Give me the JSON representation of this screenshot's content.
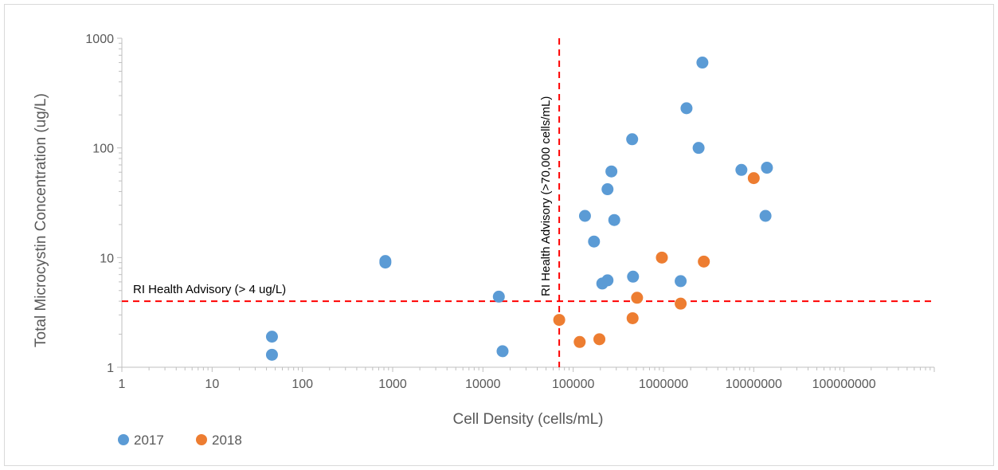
{
  "chart_data": {
    "type": "scatter",
    "title": "",
    "xlabel": "Cell Density (cells/mL)",
    "ylabel": "Total Microcystin Concentration (ug/L)",
    "x_scale": "log",
    "y_scale": "log",
    "xlim": [
      1,
      1000000000
    ],
    "ylim": [
      1,
      1000
    ],
    "x_ticks": [
      "1",
      "10",
      "100",
      "1000",
      "10000",
      "100000",
      "1000000",
      "10000000",
      "100000000"
    ],
    "y_ticks": [
      "1",
      "10",
      "100",
      "1000"
    ],
    "grid": false,
    "legend_position": "bottom-left",
    "series": [
      {
        "name": "2017",
        "color": "#5b9bd5",
        "points": [
          {
            "x": 46,
            "y": 1.9
          },
          {
            "x": 46,
            "y": 1.3
          },
          {
            "x": 830,
            "y": 9.3
          },
          {
            "x": 830,
            "y": 9.0
          },
          {
            "x": 15000,
            "y": 4.4
          },
          {
            "x": 16500,
            "y": 1.4
          },
          {
            "x": 135000,
            "y": 24
          },
          {
            "x": 170000,
            "y": 14
          },
          {
            "x": 210000,
            "y": 5.8
          },
          {
            "x": 240000,
            "y": 6.2
          },
          {
            "x": 240000,
            "y": 42
          },
          {
            "x": 265000,
            "y": 61
          },
          {
            "x": 285000,
            "y": 22
          },
          {
            "x": 450000,
            "y": 120
          },
          {
            "x": 460000,
            "y": 6.7
          },
          {
            "x": 1550000,
            "y": 6.1
          },
          {
            "x": 1800000,
            "y": 230
          },
          {
            "x": 2450000,
            "y": 100
          },
          {
            "x": 2700000,
            "y": 600
          },
          {
            "x": 7300000,
            "y": 63
          },
          {
            "x": 13500000,
            "y": 24
          },
          {
            "x": 14000000,
            "y": 66
          }
        ]
      },
      {
        "name": "2018",
        "color": "#ed7d31",
        "points": [
          {
            "x": 70000,
            "y": 2.7
          },
          {
            "x": 118000,
            "y": 1.7
          },
          {
            "x": 195000,
            "y": 1.8
          },
          {
            "x": 455000,
            "y": 2.8
          },
          {
            "x": 510000,
            "y": 4.3
          },
          {
            "x": 960000,
            "y": 10
          },
          {
            "x": 1550000,
            "y": 3.8
          },
          {
            "x": 2800000,
            "y": 9.2
          },
          {
            "x": 10000000,
            "y": 53
          }
        ]
      }
    ],
    "reference_lines": [
      {
        "orientation": "horizontal",
        "value": 4,
        "label": "RI Health Advisory (> 4 ug/L)",
        "color": "#ff0000",
        "style": "dashed"
      },
      {
        "orientation": "vertical",
        "value": 70000,
        "label": "RI Health Advisory (>70,000 cells/mL)",
        "color": "#ff0000",
        "style": "dashed"
      }
    ]
  }
}
